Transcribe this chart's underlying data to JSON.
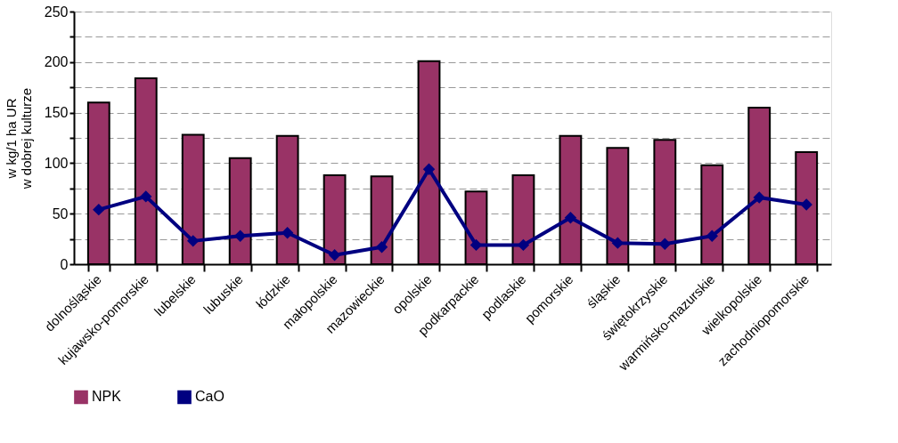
{
  "chart_data": {
    "type": "bar",
    "ylabel": "w kg/1 ha UR\nw dobrej kulturze",
    "categories": [
      "dolnośląskie",
      "kujawsko-pomorskie",
      "lubelskie",
      "lubuskie",
      "łódzkie",
      "małopolskie",
      "mazowieckie",
      "opolskie",
      "podkarpackie",
      "podlaskie",
      "pomorskie",
      "śląskie",
      "świętokrzyskie",
      "warmińsko-mazurskie",
      "wielkopolskie",
      "zachodniopomorskie"
    ],
    "series": [
      {
        "name": "NPK",
        "color": "#993366",
        "values": [
          160,
          184,
          128,
          105,
          127,
          88,
          87,
          201,
          72,
          88,
          127,
          115,
          123,
          98,
          155,
          111
        ]
      },
      {
        "name": "CaO",
        "type": "line",
        "color": "#000080",
        "marker": "diamond",
        "line_style": "solid",
        "values": [
          54,
          67,
          23,
          28,
          31,
          9,
          17,
          94,
          19,
          19,
          46,
          21,
          20,
          28,
          66,
          59
        ]
      }
    ],
    "ylim": [
      0,
      250
    ],
    "yticks": [
      0,
      {
        "value": 25,
        "label": null
      },
      50,
      {
        "value": 75,
        "label": null
      },
      100,
      {
        "value": 125,
        "label": null
      },
      150,
      {
        "value": 175,
        "label": null
      },
      200,
      {
        "value": 225,
        "label": null
      },
      250
    ],
    "grid": "y",
    "legend": "bottom"
  }
}
